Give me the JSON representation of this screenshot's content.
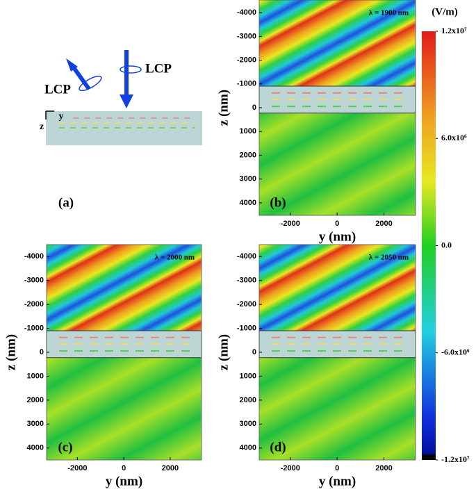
{
  "diagram": {
    "panel_label": "(a)",
    "beam_labels": [
      "LCP",
      "LCP"
    ],
    "axis_labels": [
      "z",
      "y"
    ]
  },
  "chart_data": [
    {
      "type": "heatmap",
      "panel_label": "(b)",
      "annotation": "λ = 1900 nm",
      "xlabel": "y (nm)",
      "ylabel": "z (nm)",
      "xlim": [
        -3330,
        3350
      ],
      "ylim": [
        -4530,
        4530
      ],
      "xticks": [
        -2000,
        0,
        2000
      ],
      "yticks": [
        -4000,
        -3000,
        -2000,
        -1000,
        0,
        1000,
        2000,
        3000,
        4000
      ]
    },
    {
      "type": "heatmap",
      "panel_label": "(c)",
      "annotation": "λ = 2000 nm",
      "xlabel": "y (nm)",
      "ylabel": "z (nm)",
      "xlim": [
        -3330,
        3350
      ],
      "ylim": [
        -4500,
        4500
      ],
      "xticks": [
        -2000,
        0,
        2000
      ],
      "yticks": [
        -4000,
        -3000,
        -2000,
        -1000,
        0,
        1000,
        2000,
        3000,
        4000
      ]
    },
    {
      "type": "heatmap",
      "panel_label": "(d)",
      "annotation": "λ = 2050 nm",
      "xlabel": "y (nm)",
      "ylabel": "z (nm)",
      "xlim": [
        -3330,
        3350
      ],
      "ylim": [
        -4500,
        4500
      ],
      "xticks": [
        -2000,
        0,
        2000
      ],
      "yticks": [
        -4000,
        -3000,
        -2000,
        -1000,
        0,
        1000,
        2000,
        3000,
        4000
      ]
    }
  ],
  "colorbar": {
    "title": "(V/m)",
    "lim": [
      -12000000,
      12000000
    ],
    "ticks": [
      {
        "value": 12000000,
        "label": "1.2x10⁷"
      },
      {
        "value": 6000000,
        "label": "6.0x10⁶"
      },
      {
        "value": 0,
        "label": "0.0"
      },
      {
        "value": -6000000,
        "label": "-6.0x10⁶"
      },
      {
        "value": -12000000,
        "label": "-1.2x10⁷"
      }
    ]
  }
}
